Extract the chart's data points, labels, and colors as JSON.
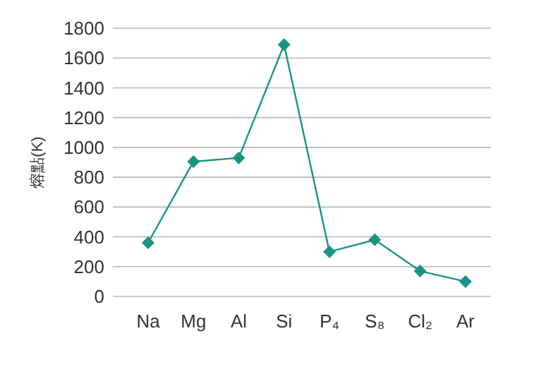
{
  "chart_data": {
    "type": "line",
    "ylabel": "熔點(K)",
    "categories": [
      "Na",
      "Mg",
      "Al",
      "Si",
      "P₄",
      "S₈",
      "Cl₂",
      "Ar"
    ],
    "series": [
      {
        "color": "#1a9484",
        "values": [
          360,
          905,
          930,
          1690,
          300,
          380,
          170,
          100
        ]
      }
    ],
    "ylim": [
      0,
      1800
    ],
    "yticks": [
      0,
      200,
      400,
      600,
      800,
      1000,
      1200,
      1400,
      1600,
      1800
    ],
    "grid": "y",
    "marker": "diamond",
    "line_style": "solid"
  }
}
